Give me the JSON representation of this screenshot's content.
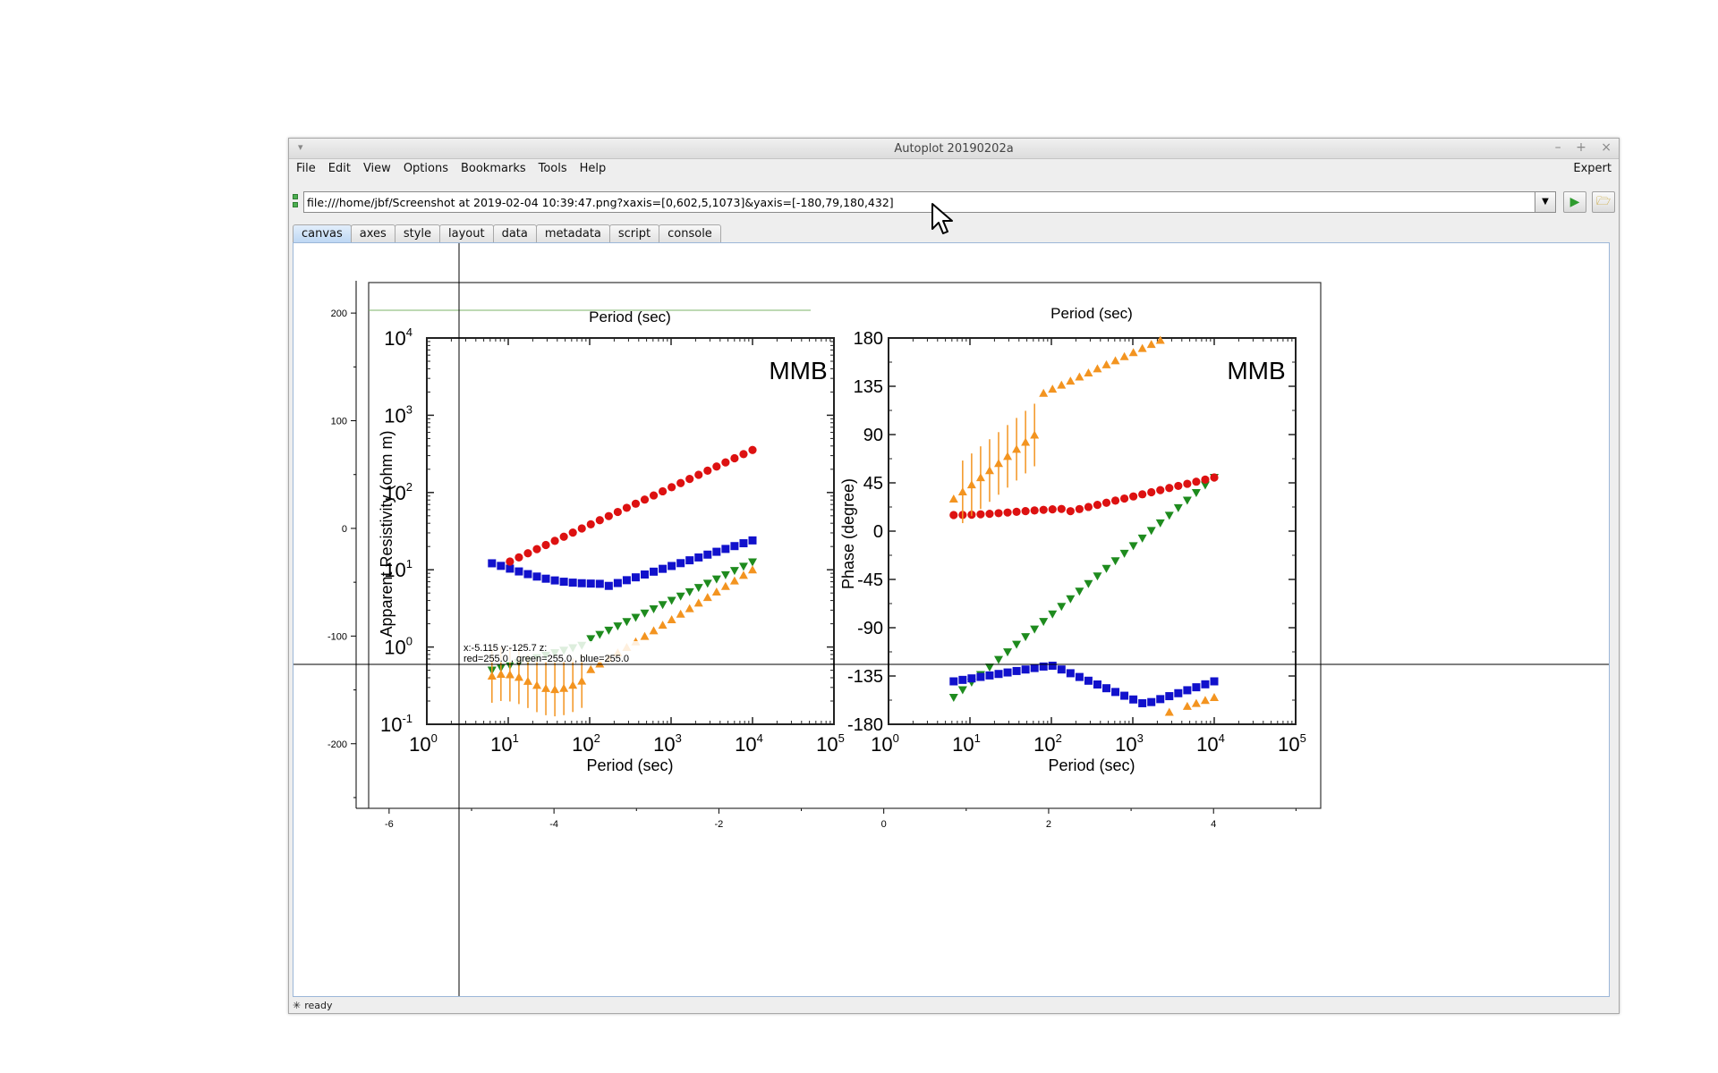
{
  "window": {
    "title": "Autoplot 20190202a"
  },
  "menu": {
    "items": [
      "File",
      "Edit",
      "View",
      "Options",
      "Bookmarks",
      "Tools",
      "Help"
    ],
    "expert": "Expert"
  },
  "url": {
    "value": "file:///home/jbf/Screenshot at 2019-02-04 10:39:47.png?xaxis=[0,602,5,1073]&yaxis=[-180,79,180,432]"
  },
  "tabs": [
    "canvas",
    "axes",
    "style",
    "layout",
    "data",
    "metadata",
    "script",
    "console"
  ],
  "status": {
    "text": "ready"
  },
  "readout": {
    "line1": "x:-5.115  y:-125.7  z:",
    "line2": "red=255.0 , green=255.0 , blue=255.0"
  },
  "chart_data": {
    "type": "image",
    "xticks": [
      -6,
      -4,
      -2,
      0,
      2,
      4
    ],
    "yticks": [
      200,
      100,
      0,
      -100,
      -200
    ],
    "xlim": [
      -6.4,
      5.3
    ],
    "ylim": [
      -260,
      230
    ],
    "crosshair": {
      "x": -5.115,
      "y": -125.7
    },
    "image_content": {
      "left_panel": {
        "title": "MMB",
        "xlabel": "Period (sec)",
        "ylabel": "Apparent Resistivity (ohm m)",
        "xticks": [
          "10^0",
          "10^1",
          "10^2",
          "10^3",
          "10^4",
          "10^5"
        ],
        "yticks": [
          "10^4",
          "10^3",
          "10^2",
          "10^1",
          "10^0",
          "10^-1"
        ]
      },
      "right_panel": {
        "title": "MMB",
        "xlabel": "Period (sec)",
        "ylabel": "Phase (degree)",
        "xticks": [
          "10^0",
          "10^1",
          "10^2",
          "10^3",
          "10^4",
          "10^5"
        ],
        "yticks": [
          "180",
          "135",
          "90",
          "45",
          "0",
          "-45",
          "-90",
          "-135",
          "-180"
        ]
      },
      "series_colors": {
        "red": "#dd1111",
        "blue": "#1111cc",
        "orange": "#f39420",
        "green": "#1e8b1e"
      }
    }
  }
}
